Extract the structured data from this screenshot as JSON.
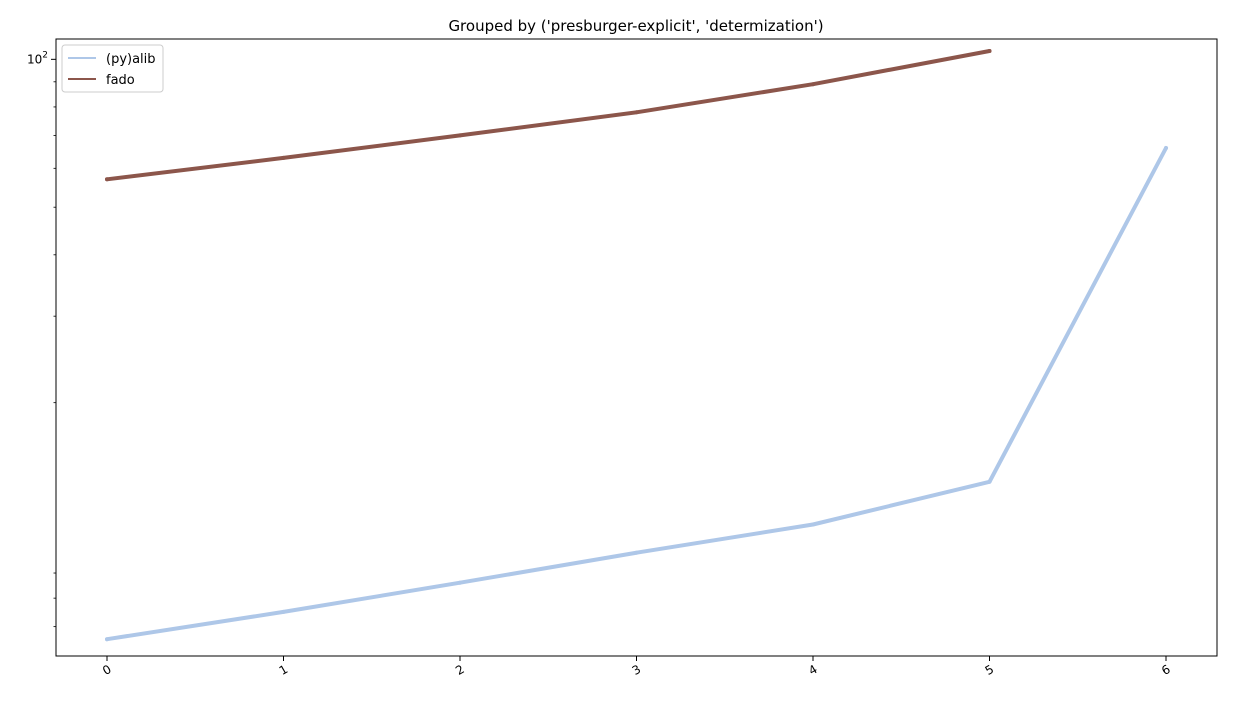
{
  "chart_data": {
    "type": "line",
    "title": "Grouped by ('presburger-explicit', 'determization')",
    "xlabel": "",
    "ylabel": "",
    "x": [
      0,
      1,
      2,
      3,
      4,
      5,
      6
    ],
    "x_tick_labels": [
      "0",
      "1",
      "2",
      "3",
      "4",
      "5",
      "6"
    ],
    "y_scale": "log",
    "y_tick_labels": [
      {
        "base": "10",
        "exp": "2",
        "value": 100
      }
    ],
    "ylim": [
      6.1,
      110
    ],
    "grid": false,
    "legend_position": "top-left",
    "series": [
      {
        "name": "(py)alib",
        "color": "#aec7e8",
        "x": [
          0,
          1,
          2,
          3,
          4,
          5,
          6
        ],
        "values": [
          6.6,
          7.5,
          8.6,
          9.9,
          11.3,
          13.8,
          66
        ]
      },
      {
        "name": "fado",
        "color": "#8c564b",
        "x": [
          0,
          1,
          2,
          3,
          4,
          5
        ],
        "values": [
          57,
          63,
          70,
          78,
          89,
          104
        ]
      }
    ]
  }
}
